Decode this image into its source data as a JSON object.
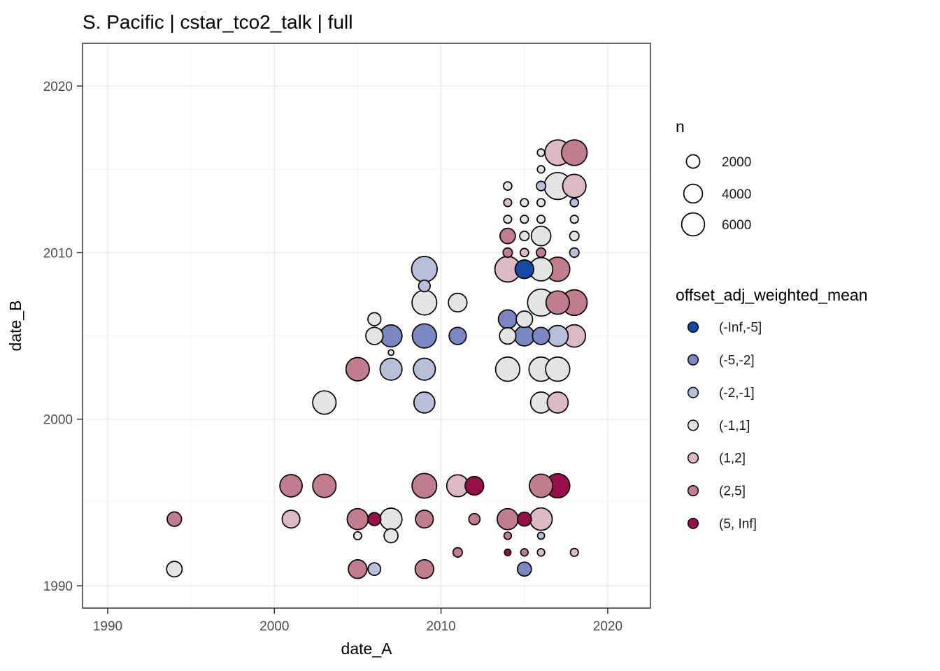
{
  "title": "S. Pacific | cstar_tco2_talk | full",
  "axes": {
    "x": {
      "label": "date_A",
      "tick_labels": [
        "1990",
        "2000",
        "2010",
        "2020"
      ],
      "ticks": [
        1990,
        2000,
        2010,
        2020
      ],
      "minor_ticks": [
        1995,
        2005,
        2015
      ]
    },
    "y": {
      "label": "date_B",
      "tick_labels": [
        "1990",
        "2000",
        "2010",
        "2020"
      ],
      "ticks": [
        1990,
        2000,
        2010,
        2020
      ],
      "minor_ticks": [
        1995,
        2005,
        2015
      ]
    }
  },
  "legend_size": {
    "title": "n",
    "items": [
      "2000",
      "4000",
      "6000"
    ],
    "values": [
      2000,
      4000,
      6000
    ]
  },
  "legend_color": {
    "title": "offset_adj_weighted_mean",
    "items": [
      {
        "label": "(-Inf,-5]",
        "color": "#1449a6"
      },
      {
        "label": "(-5,-2]",
        "color": "#7b87c2"
      },
      {
        "label": "(-2,-1]",
        "color": "#b9bed9"
      },
      {
        "label": "(-1,1]",
        "color": "#e4e4e4"
      },
      {
        "label": "(1,2]",
        "color": "#dcbac3"
      },
      {
        "label": "(2,5]",
        "color": "#c07d8f"
      },
      {
        "label": "(5, Inf]",
        "color": "#970e49"
      }
    ]
  },
  "chart_data": {
    "type": "scatter",
    "title": "S. Pacific | cstar_tco2_talk | full",
    "xlabel": "date_A",
    "ylabel": "date_B",
    "xlim": [
      1988.5,
      2022.6
    ],
    "ylim": [
      1988.6,
      2022.5
    ],
    "grid": "on",
    "legend_position": "right",
    "size_variable": "n",
    "color_variable": "offset_adj_weighted_mean",
    "palette": {
      "(-Inf,-5]": "#1449a6",
      "(-5,-2]": "#7b87c2",
      "(-2,-1]": "#b9bed9",
      "(-1,1]": "#e4e4e4",
      "(1,2]": "#dcbac3",
      "(2,5]": "#c07d8f",
      "(5, Inf]": "#970e49"
    },
    "points": [
      {
        "date_A": 1994,
        "date_B": 1994,
        "n": 2300,
        "bin": "(2,5]"
      },
      {
        "date_A": 1994,
        "date_B": 1991,
        "n": 2700,
        "bin": "(-1,1]"
      },
      {
        "date_A": 2001,
        "date_B": 1996,
        "n": 5700,
        "bin": "(2,5]"
      },
      {
        "date_A": 2003,
        "date_B": 1996,
        "n": 6250,
        "bin": "(2,5]"
      },
      {
        "date_A": 2001,
        "date_B": 1994,
        "n": 3550,
        "bin": "(1,2]"
      },
      {
        "date_A": 2005,
        "date_B": 1994,
        "n": 5000,
        "bin": "(2,5]"
      },
      {
        "date_A": 2006,
        "date_B": 1994,
        "n": 1850,
        "bin": "(5, Inf]"
      },
      {
        "date_A": 2007,
        "date_B": 1994,
        "n": 5500,
        "bin": "(-1,1]"
      },
      {
        "date_A": 2005,
        "date_B": 1993,
        "n": 650,
        "bin": "(-1,1]"
      },
      {
        "date_A": 2007,
        "date_B": 1993,
        "n": 2150,
        "bin": "(-1,1]"
      },
      {
        "date_A": 2005,
        "date_B": 1991,
        "n": 3900,
        "bin": "(2,5]"
      },
      {
        "date_A": 2006,
        "date_B": 1991,
        "n": 1750,
        "bin": "(-2,-1]"
      },
      {
        "date_A": 2009,
        "date_B": 1996,
        "n": 7050,
        "bin": "(2,5]"
      },
      {
        "date_A": 2011,
        "date_B": 1996,
        "n": 5500,
        "bin": "(1,2]"
      },
      {
        "date_A": 2012,
        "date_B": 1996,
        "n": 3900,
        "bin": "(5, Inf]"
      },
      {
        "date_A": 2016,
        "date_B": 1996,
        "n": 6250,
        "bin": "(2,5]"
      },
      {
        "date_A": 2017,
        "date_B": 1996,
        "n": 6750,
        "bin": "(5, Inf]"
      },
      {
        "date_A": 2009,
        "date_B": 1994,
        "n": 3550,
        "bin": "(2,5]"
      },
      {
        "date_A": 2012,
        "date_B": 1994,
        "n": 1350,
        "bin": "(2,5]"
      },
      {
        "date_A": 2014,
        "date_B": 1994,
        "n": 5000,
        "bin": "(2,5]"
      },
      {
        "date_A": 2015,
        "date_B": 1994,
        "n": 2150,
        "bin": "(5, Inf]"
      },
      {
        "date_A": 2016,
        "date_B": 1994,
        "n": 5700,
        "bin": "(1,2]"
      },
      {
        "date_A": 2014,
        "date_B": 1993,
        "n": 550,
        "bin": "(2,5]"
      },
      {
        "date_A": 2016,
        "date_B": 1993,
        "n": 500,
        "bin": "(-2,-1]"
      },
      {
        "date_A": 2011,
        "date_B": 1992,
        "n": 930,
        "bin": "(2,5]"
      },
      {
        "date_A": 2014,
        "date_B": 1992,
        "n": 430,
        "bin": "(5, Inf]"
      },
      {
        "date_A": 2015,
        "date_B": 1992,
        "n": 550,
        "bin": "(2,5]"
      },
      {
        "date_A": 2016,
        "date_B": 1992,
        "n": 550,
        "bin": "(1,2]"
      },
      {
        "date_A": 2018,
        "date_B": 1992,
        "n": 650,
        "bin": "(1,2]"
      },
      {
        "date_A": 2009,
        "date_B": 1991,
        "n": 3900,
        "bin": "(2,5]"
      },
      {
        "date_A": 2015,
        "date_B": 1991,
        "n": 2150,
        "bin": "(-5,-2]"
      },
      {
        "date_A": 2003,
        "date_B": 2001,
        "n": 6250,
        "bin": "(-1,1]"
      },
      {
        "date_A": 2005,
        "date_B": 2003,
        "n": 6250,
        "bin": "(2,5]"
      },
      {
        "date_A": 2007,
        "date_B": 2003,
        "n": 5500,
        "bin": "(-2,-1]"
      },
      {
        "date_A": 2009,
        "date_B": 2003,
        "n": 5500,
        "bin": "(-2,-1]"
      },
      {
        "date_A": 2009,
        "date_B": 2001,
        "n": 5000,
        "bin": "(-2,-1]"
      },
      {
        "date_A": 2006,
        "date_B": 2006,
        "n": 1850,
        "bin": "(-1,1]"
      },
      {
        "date_A": 2006,
        "date_B": 2005,
        "n": 3330,
        "bin": "(-1,1]"
      },
      {
        "date_A": 2007,
        "date_B": 2005,
        "n": 5500,
        "bin": "(-5,-2]"
      },
      {
        "date_A": 2009,
        "date_B": 2005,
        "n": 6730,
        "bin": "(-5,-2]"
      },
      {
        "date_A": 2011,
        "date_B": 2005,
        "n": 3330,
        "bin": "(-5,-2]"
      },
      {
        "date_A": 2007,
        "date_B": 2004,
        "n": 300,
        "bin": "(-1,1]"
      },
      {
        "date_A": 2009,
        "date_B": 2007,
        "n": 7050,
        "bin": "(-1,1]"
      },
      {
        "date_A": 2011,
        "date_B": 2007,
        "n": 3900,
        "bin": "(-1,1]"
      },
      {
        "date_A": 2009,
        "date_B": 2009,
        "n": 7550,
        "bin": "(-2,-1]"
      },
      {
        "date_A": 2009,
        "date_B": 2008,
        "n": 1450,
        "bin": "(-2,-1]"
      },
      {
        "date_A": 2016,
        "date_B": 2016,
        "n": 550,
        "bin": "(-1,1]"
      },
      {
        "date_A": 2017,
        "date_B": 2016,
        "n": 7550,
        "bin": "(1,2]"
      },
      {
        "date_A": 2018,
        "date_B": 2016,
        "n": 7550,
        "bin": "(2,5]"
      },
      {
        "date_A": 2016,
        "date_B": 2015,
        "n": 550,
        "bin": "(-1,1]"
      },
      {
        "date_A": 2014,
        "date_B": 2014,
        "n": 730,
        "bin": "(-1,1]"
      },
      {
        "date_A": 2016,
        "date_B": 2014,
        "n": 930,
        "bin": "(-2,-1]"
      },
      {
        "date_A": 2017,
        "date_B": 2014,
        "n": 8400,
        "bin": "(-1,1]"
      },
      {
        "date_A": 2018,
        "date_B": 2014,
        "n": 6250,
        "bin": "(1,2]"
      },
      {
        "date_A": 2014,
        "date_B": 2013,
        "n": 650,
        "bin": "(1,2]"
      },
      {
        "date_A": 2015,
        "date_B": 2013,
        "n": 650,
        "bin": "(-1,1]"
      },
      {
        "date_A": 2016,
        "date_B": 2013,
        "n": 650,
        "bin": "(-1,1]"
      },
      {
        "date_A": 2018,
        "date_B": 2013,
        "n": 730,
        "bin": "(-2,-1]"
      },
      {
        "date_A": 2014,
        "date_B": 2012,
        "n": 650,
        "bin": "(-1,1]"
      },
      {
        "date_A": 2015,
        "date_B": 2012,
        "n": 650,
        "bin": "(-1,1]"
      },
      {
        "date_A": 2016,
        "date_B": 2012,
        "n": 650,
        "bin": "(-1,1]"
      },
      {
        "date_A": 2018,
        "date_B": 2012,
        "n": 650,
        "bin": "(-1,1]"
      },
      {
        "date_A": 2014,
        "date_B": 2011,
        "n": 2650,
        "bin": "(2,5]"
      },
      {
        "date_A": 2015,
        "date_B": 2011,
        "n": 930,
        "bin": "(-1,1]"
      },
      {
        "date_A": 2016,
        "date_B": 2011,
        "n": 4350,
        "bin": "(-1,1]"
      },
      {
        "date_A": 2018,
        "date_B": 2011,
        "n": 930,
        "bin": "(-1,1]"
      },
      {
        "date_A": 2014,
        "date_B": 2010,
        "n": 930,
        "bin": "(2,5]"
      },
      {
        "date_A": 2015,
        "date_B": 2010,
        "n": 730,
        "bin": "(1,2]"
      },
      {
        "date_A": 2016,
        "date_B": 2010,
        "n": 930,
        "bin": "(2,5]"
      },
      {
        "date_A": 2018,
        "date_B": 2010,
        "n": 930,
        "bin": "(-2,-1]"
      },
      {
        "date_A": 2014,
        "date_B": 2009,
        "n": 7550,
        "bin": "(1,2]"
      },
      {
        "date_A": 2015,
        "date_B": 2009,
        "n": 3900,
        "bin": "(-Inf,-5]"
      },
      {
        "date_A": 2016,
        "date_B": 2009,
        "n": 6250,
        "bin": "(-1,1]"
      },
      {
        "date_A": 2017,
        "date_B": 2009,
        "n": 6750,
        "bin": "(2,5]"
      },
      {
        "date_A": 2016,
        "date_B": 2007,
        "n": 8400,
        "bin": "(-1,1]"
      },
      {
        "date_A": 2017,
        "date_B": 2007,
        "n": 6250,
        "bin": "(2,5]"
      },
      {
        "date_A": 2018,
        "date_B": 2007,
        "n": 7550,
        "bin": "(2,5]"
      },
      {
        "date_A": 2014,
        "date_B": 2006,
        "n": 3900,
        "bin": "(-5,-2]"
      },
      {
        "date_A": 2015,
        "date_B": 2006,
        "n": 3000,
        "bin": "(-1,1]"
      },
      {
        "date_A": 2014,
        "date_B": 2005,
        "n": 3000,
        "bin": "(-1,1]"
      },
      {
        "date_A": 2015,
        "date_B": 2005,
        "n": 4550,
        "bin": "(-5,-2]"
      },
      {
        "date_A": 2016,
        "date_B": 2005,
        "n": 3330,
        "bin": "(-5,-2]"
      },
      {
        "date_A": 2017,
        "date_B": 2005,
        "n": 5000,
        "bin": "(-2,-1]"
      },
      {
        "date_A": 2018,
        "date_B": 2005,
        "n": 5700,
        "bin": "(1,2]"
      },
      {
        "date_A": 2014,
        "date_B": 2003,
        "n": 6750,
        "bin": "(-1,1]"
      },
      {
        "date_A": 2016,
        "date_B": 2003,
        "n": 6750,
        "bin": "(-1,1]"
      },
      {
        "date_A": 2017,
        "date_B": 2003,
        "n": 6750,
        "bin": "(-1,1]"
      },
      {
        "date_A": 2016,
        "date_B": 2001,
        "n": 5000,
        "bin": "(-1,1]"
      },
      {
        "date_A": 2017,
        "date_B": 2001,
        "n": 5000,
        "bin": "(1,2]"
      }
    ]
  },
  "style": {
    "panel_border": "#333333",
    "grid_major": "#ebebeb",
    "grid_minor": "#f2f2f2",
    "point_stroke": "#000000",
    "tick_color": "#333333"
  }
}
